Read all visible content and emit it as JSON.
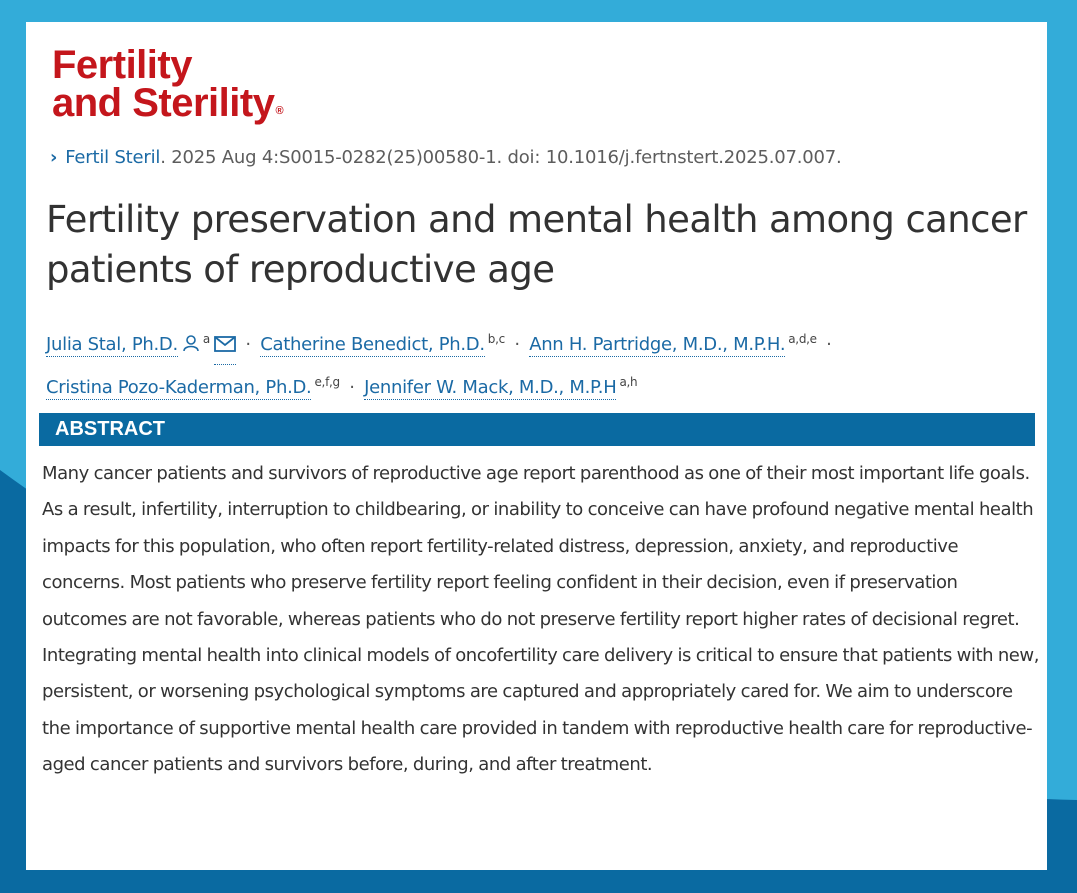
{
  "colors": {
    "background": "#33acd9",
    "background_wave": "#0a6aa1",
    "brand_red": "#c4161c",
    "link_blue": "#1b6aa5",
    "abstract_bar": "#0a6aa1"
  },
  "logo": {
    "line1": "Fertility",
    "line2": "and Sterility",
    "reg_mark": "®"
  },
  "citation": {
    "journal": "Fertil Steril",
    "details": ". 2025 Aug 4:S0015-0282(25)00580-1. doi: 10.1016/j.fertnstert.2025.07.007."
  },
  "title": "Fertility preservation and mental health among cancer patients of reproductive age",
  "authors": [
    {
      "name": "Julia Stal, Ph.D.",
      "affiliations": "a",
      "icons": [
        "person-icon",
        "mail-icon"
      ]
    },
    {
      "name": "Catherine Benedict, Ph.D.",
      "affiliations": "b,c"
    },
    {
      "name": "Ann H. Partridge, M.D., M.P.H.",
      "affiliations": "a,d,e"
    },
    {
      "name": "Cristina Pozo-Kaderman, Ph.D.",
      "affiliations": "e,f,g"
    },
    {
      "name": "Jennifer W. Mack, M.D., M.P.H",
      "affiliations": "a,h"
    }
  ],
  "author_separator": "·",
  "abstract": {
    "heading": "ABSTRACT",
    "text": "Many cancer patients and survivors of reproductive age report parenthood as one of their most important life goals. As a result, infertility, interruption to childbearing, or inability to conceive can have profound negative mental health impacts for this population, who often report fertility-related distress, depression, anxiety, and reproductive concerns. Most patients who preserve fertility report feeling confident in their decision, even if preservation outcomes are not favorable, whereas patients who do not preserve fertility report higher rates of decisional regret. Integrating mental health into clinical models of oncofertility care delivery is critical to ensure that patients with new, persistent, or worsening psychological symptoms are captured and appropriately cared for. We aim to underscore the importance of supportive mental health care provided in tandem with reproductive health care for reproductive-aged cancer patients and survivors before, during, and after treatment."
  }
}
